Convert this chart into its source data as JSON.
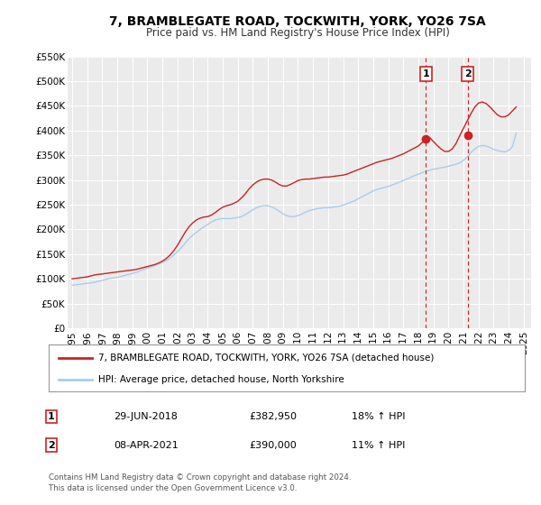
{
  "title": "7, BRAMBLEGATE ROAD, TOCKWITH, YORK, YO26 7SA",
  "subtitle": "Price paid vs. HM Land Registry's House Price Index (HPI)",
  "background_color": "#ffffff",
  "plot_bg_color": "#ebebeb",
  "grid_color": "#ffffff",
  "line1_color": "#cc2222",
  "line2_color": "#aaccee",
  "ylim": [
    0,
    550000
  ],
  "yticks": [
    0,
    50000,
    100000,
    150000,
    200000,
    250000,
    300000,
    350000,
    400000,
    450000,
    500000,
    550000
  ],
  "ytick_labels": [
    "£0",
    "£50K",
    "£100K",
    "£150K",
    "£200K",
    "£250K",
    "£300K",
    "£350K",
    "£400K",
    "£450K",
    "£500K",
    "£550K"
  ],
  "xlim_start": 1994.7,
  "xlim_end": 2025.5,
  "xticks": [
    1995,
    1996,
    1997,
    1998,
    1999,
    2000,
    2001,
    2002,
    2003,
    2004,
    2005,
    2006,
    2007,
    2008,
    2009,
    2010,
    2011,
    2012,
    2013,
    2014,
    2015,
    2016,
    2017,
    2018,
    2019,
    2020,
    2021,
    2022,
    2023,
    2024,
    2025
  ],
  "marker1_x": 2018.5,
  "marker1_y": 382950,
  "marker1_label": "1",
  "marker2_x": 2021.27,
  "marker2_y": 390000,
  "marker2_label": "2",
  "vline1_x": 2018.5,
  "vline2_x": 2021.27,
  "legend_line1": "7, BRAMBLEGATE ROAD, TOCKWITH, YORK, YO26 7SA (detached house)",
  "legend_line2": "HPI: Average price, detached house, North Yorkshire",
  "ann1_box": "1",
  "ann1_date": "29-JUN-2018",
  "ann1_price": "£382,950",
  "ann1_hpi": "18% ↑ HPI",
  "ann2_box": "2",
  "ann2_date": "08-APR-2021",
  "ann2_price": "£390,000",
  "ann2_hpi": "11% ↑ HPI",
  "footnote": "Contains HM Land Registry data © Crown copyright and database right 2024.\nThis data is licensed under the Open Government Licence v3.0.",
  "hpi_line": {
    "x": [
      1995.0,
      1995.25,
      1995.5,
      1995.75,
      1996.0,
      1996.25,
      1996.5,
      1996.75,
      1997.0,
      1997.25,
      1997.5,
      1997.75,
      1998.0,
      1998.25,
      1998.5,
      1998.75,
      1999.0,
      1999.25,
      1999.5,
      1999.75,
      2000.0,
      2000.25,
      2000.5,
      2000.75,
      2001.0,
      2001.25,
      2001.5,
      2001.75,
      2002.0,
      2002.25,
      2002.5,
      2002.75,
      2003.0,
      2003.25,
      2003.5,
      2003.75,
      2004.0,
      2004.25,
      2004.5,
      2004.75,
      2005.0,
      2005.25,
      2005.5,
      2005.75,
      2006.0,
      2006.25,
      2006.5,
      2006.75,
      2007.0,
      2007.25,
      2007.5,
      2007.75,
      2008.0,
      2008.25,
      2008.5,
      2008.75,
      2009.0,
      2009.25,
      2009.5,
      2009.75,
      2010.0,
      2010.25,
      2010.5,
      2010.75,
      2011.0,
      2011.25,
      2011.5,
      2011.75,
      2012.0,
      2012.25,
      2012.5,
      2012.75,
      2013.0,
      2013.25,
      2013.5,
      2013.75,
      2014.0,
      2014.25,
      2014.5,
      2014.75,
      2015.0,
      2015.25,
      2015.5,
      2015.75,
      2016.0,
      2016.25,
      2016.5,
      2016.75,
      2017.0,
      2017.25,
      2017.5,
      2017.75,
      2018.0,
      2018.25,
      2018.5,
      2018.75,
      2019.0,
      2019.25,
      2019.5,
      2019.75,
      2020.0,
      2020.25,
      2020.5,
      2020.75,
      2021.0,
      2021.25,
      2021.5,
      2021.75,
      2022.0,
      2022.25,
      2022.5,
      2022.75,
      2023.0,
      2023.25,
      2023.5,
      2023.75,
      2024.0,
      2024.25,
      2024.5
    ],
    "y": [
      87000,
      88000,
      89000,
      90000,
      91000,
      92000,
      93000,
      95000,
      97000,
      99000,
      101000,
      102000,
      103000,
      105000,
      107000,
      109000,
      111000,
      113000,
      116000,
      119000,
      122000,
      124000,
      127000,
      130000,
      133000,
      137000,
      142000,
      148000,
      155000,
      163000,
      172000,
      181000,
      188000,
      194000,
      200000,
      205000,
      210000,
      215000,
      219000,
      221000,
      222000,
      222000,
      222000,
      223000,
      224000,
      226000,
      230000,
      235000,
      240000,
      244000,
      247000,
      248000,
      248000,
      246000,
      242000,
      237000,
      232000,
      228000,
      226000,
      226000,
      228000,
      231000,
      235000,
      238000,
      240000,
      242000,
      243000,
      244000,
      244000,
      245000,
      246000,
      247000,
      249000,
      252000,
      255000,
      258000,
      262000,
      266000,
      270000,
      274000,
      278000,
      281000,
      283000,
      285000,
      287000,
      290000,
      293000,
      296000,
      299000,
      302000,
      306000,
      309000,
      312000,
      315000,
      318000,
      320000,
      322000,
      323000,
      325000,
      326000,
      328000,
      330000,
      332000,
      335000,
      340000,
      347000,
      356000,
      363000,
      368000,
      370000,
      369000,
      366000,
      362000,
      360000,
      358000,
      357000,
      360000,
      368000,
      395000
    ]
  },
  "price_line": {
    "x": [
      1995.0,
      1995.25,
      1995.5,
      1995.75,
      1996.0,
      1996.25,
      1996.5,
      1996.75,
      1997.0,
      1997.25,
      1997.5,
      1997.75,
      1998.0,
      1998.25,
      1998.5,
      1998.75,
      1999.0,
      1999.25,
      1999.5,
      1999.75,
      2000.0,
      2000.25,
      2000.5,
      2000.75,
      2001.0,
      2001.25,
      2001.5,
      2001.75,
      2002.0,
      2002.25,
      2002.5,
      2002.75,
      2003.0,
      2003.25,
      2003.5,
      2003.75,
      2004.0,
      2004.25,
      2004.5,
      2004.75,
      2005.0,
      2005.25,
      2005.5,
      2005.75,
      2006.0,
      2006.25,
      2006.5,
      2006.75,
      2007.0,
      2007.25,
      2007.5,
      2007.75,
      2008.0,
      2008.25,
      2008.5,
      2008.75,
      2009.0,
      2009.25,
      2009.5,
      2009.75,
      2010.0,
      2010.25,
      2010.5,
      2010.75,
      2011.0,
      2011.25,
      2011.5,
      2011.75,
      2012.0,
      2012.25,
      2012.5,
      2012.75,
      2013.0,
      2013.25,
      2013.5,
      2013.75,
      2014.0,
      2014.25,
      2014.5,
      2014.75,
      2015.0,
      2015.25,
      2015.5,
      2015.75,
      2016.0,
      2016.25,
      2016.5,
      2016.75,
      2017.0,
      2017.25,
      2017.5,
      2017.75,
      2018.0,
      2018.25,
      2018.5,
      2018.75,
      2019.0,
      2019.25,
      2019.5,
      2019.75,
      2020.0,
      2020.25,
      2020.5,
      2020.75,
      2021.0,
      2021.25,
      2021.5,
      2021.75,
      2022.0,
      2022.25,
      2022.5,
      2022.75,
      2023.0,
      2023.25,
      2023.5,
      2023.75,
      2024.0,
      2024.25,
      2024.5
    ],
    "y": [
      100000,
      101000,
      102000,
      103000,
      104000,
      106000,
      108000,
      109000,
      110000,
      111000,
      112000,
      113000,
      114000,
      115000,
      116000,
      117000,
      118000,
      119000,
      121000,
      123000,
      125000,
      127000,
      129000,
      132000,
      136000,
      141000,
      148000,
      157000,
      168000,
      181000,
      194000,
      205000,
      213000,
      219000,
      223000,
      225000,
      226000,
      229000,
      234000,
      240000,
      245000,
      248000,
      250000,
      253000,
      257000,
      264000,
      272000,
      282000,
      290000,
      296000,
      300000,
      302000,
      302000,
      300000,
      296000,
      291000,
      288000,
      288000,
      291000,
      295000,
      299000,
      301000,
      302000,
      302000,
      303000,
      304000,
      305000,
      306000,
      306000,
      307000,
      308000,
      309000,
      310000,
      312000,
      315000,
      318000,
      321000,
      324000,
      327000,
      330000,
      333000,
      336000,
      338000,
      340000,
      342000,
      344000,
      347000,
      350000,
      353000,
      357000,
      361000,
      365000,
      369000,
      376000,
      382950,
      386000,
      378000,
      370000,
      363000,
      358000,
      358000,
      363000,
      374000,
      390000,
      405000,
      420000,
      435000,
      448000,
      456000,
      458000,
      455000,
      448000,
      440000,
      432000,
      428000,
      428000,
      432000,
      440000,
      448000
    ]
  }
}
